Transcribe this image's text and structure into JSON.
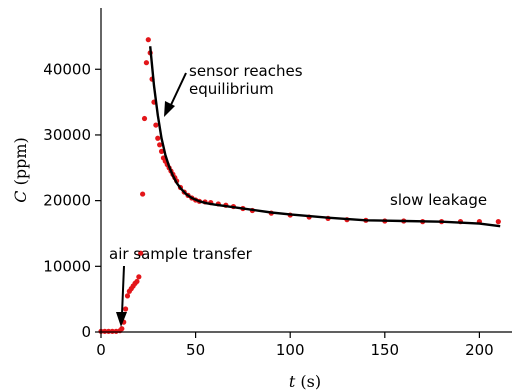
{
  "chart_data": {
    "type": "scatter",
    "xlabel_var": "t",
    "xlabel_unit": " (s)",
    "ylabel_var": "C",
    "ylabel_unit": " (ppm)",
    "xlim": [
      0,
      213
    ],
    "ylim": [
      0,
      47500
    ],
    "x_ticks": [
      0,
      50,
      100,
      150,
      200
    ],
    "y_ticks": [
      0,
      10000,
      20000,
      30000,
      40000
    ],
    "x_tick_labels": [
      "0",
      "50",
      "100",
      "150",
      "200"
    ],
    "y_tick_labels": [
      "0",
      "10000",
      "20000",
      "30000",
      "40000"
    ],
    "grid": false,
    "colors": {
      "points": "#e3161a",
      "fit": "#000000"
    },
    "series": [
      {
        "kind": "points",
        "x": [
          0,
          2,
          4,
          6,
          8,
          10,
          11,
          12,
          13,
          14,
          15,
          16,
          17,
          18,
          19,
          20,
          21,
          22,
          23,
          24,
          25,
          26,
          27,
          28,
          29,
          30,
          31,
          32,
          33,
          34,
          35,
          36,
          37,
          38,
          39,
          40,
          42,
          44,
          46,
          48,
          50,
          52,
          55,
          58,
          62,
          66,
          70,
          75,
          80,
          90,
          100,
          110,
          120,
          130,
          140,
          150,
          160,
          170,
          180,
          190,
          200,
          210
        ],
        "y": [
          100,
          100,
          100,
          100,
          100,
          200,
          500,
          1500,
          3500,
          5500,
          6200,
          6600,
          7000,
          7400,
          7700,
          8400,
          12000,
          21000,
          32500,
          41000,
          44500,
          42500,
          38500,
          35000,
          31500,
          29500,
          28500,
          27500,
          26500,
          26000,
          25500,
          25000,
          24500,
          24000,
          23500,
          23000,
          22000,
          21300,
          20800,
          20400,
          20100,
          19900,
          19800,
          19700,
          19500,
          19300,
          19100,
          18800,
          18500,
          18100,
          17800,
          17500,
          17300,
          17100,
          17000,
          16900,
          16900,
          16800,
          16800,
          16800,
          16800,
          16800
        ]
      },
      {
        "kind": "line",
        "x": [
          26,
          28,
          30,
          32,
          34,
          36,
          38,
          40,
          42,
          45,
          48,
          52,
          56,
          60,
          70,
          80,
          90,
          100,
          120,
          140,
          160,
          180,
          200,
          211
        ],
        "y": [
          43500,
          37500,
          33000,
          29500,
          27000,
          25200,
          23800,
          22700,
          21900,
          21000,
          20400,
          19900,
          19600,
          19400,
          19000,
          18600,
          18200,
          17900,
          17400,
          17000,
          16900,
          16800,
          16500,
          16100
        ]
      }
    ],
    "annotations": [
      {
        "text": "sensor reaches",
        "at": [
          27,
          34000
        ]
      },
      {
        "text": "equilibrium",
        "at": [
          27,
          34000
        ]
      },
      {
        "text": "slow leakage",
        "at": [
          200,
          17200
        ]
      },
      {
        "text": "air sample transfer",
        "at": [
          11,
          800
        ]
      }
    ]
  }
}
